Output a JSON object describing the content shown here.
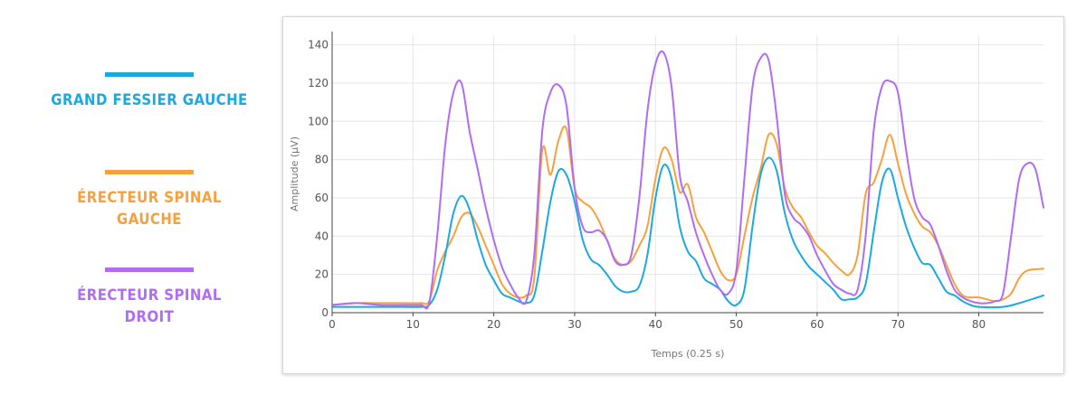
{
  "legend": {
    "items": [
      {
        "label": "GRAND FESSIER GAUCHE",
        "color": "#1aa9e1"
      },
      {
        "label": "ÉRECTEUR SPINAL GAUCHE",
        "color": "#f7a13e"
      },
      {
        "label": "ÉRECTEUR SPINAL DROIT",
        "color": "#b06cf2"
      }
    ]
  },
  "chart_data": {
    "type": "line",
    "xlabel": "Temps (0.25 s)",
    "ylabel": "Amplitude (μV)",
    "xlim": [
      0,
      88
    ],
    "ylim": [
      0,
      145
    ],
    "xticks": [
      0,
      10,
      20,
      30,
      40,
      50,
      60,
      70,
      80
    ],
    "yticks": [
      0,
      20,
      40,
      60,
      80,
      100,
      120,
      140
    ],
    "grid": true,
    "series": [
      {
        "name": "GRAND FESSIER GAUCHE",
        "color": "#1aa9e1",
        "points": [
          [
            0,
            3
          ],
          [
            3,
            3
          ],
          [
            6,
            3
          ],
          [
            9,
            3
          ],
          [
            11,
            3
          ],
          [
            12,
            4
          ],
          [
            13,
            12
          ],
          [
            14,
            30
          ],
          [
            15,
            52
          ],
          [
            16,
            61
          ],
          [
            17,
            54
          ],
          [
            18,
            38
          ],
          [
            19,
            25
          ],
          [
            20,
            17
          ],
          [
            21,
            10
          ],
          [
            22,
            8
          ],
          [
            23,
            6
          ],
          [
            24,
            5
          ],
          [
            25,
            9
          ],
          [
            26,
            32
          ],
          [
            27,
            58
          ],
          [
            28,
            74
          ],
          [
            29,
            72
          ],
          [
            30,
            58
          ],
          [
            31,
            38
          ],
          [
            32,
            28
          ],
          [
            33,
            25
          ],
          [
            34,
            20
          ],
          [
            35,
            14
          ],
          [
            36,
            11
          ],
          [
            37,
            11
          ],
          [
            38,
            14
          ],
          [
            39,
            30
          ],
          [
            40,
            60
          ],
          [
            41,
            77
          ],
          [
            42,
            70
          ],
          [
            43,
            45
          ],
          [
            44,
            32
          ],
          [
            45,
            27
          ],
          [
            46,
            18
          ],
          [
            47,
            15
          ],
          [
            48,
            12
          ],
          [
            49,
            6
          ],
          [
            50,
            4
          ],
          [
            51,
            12
          ],
          [
            52,
            45
          ],
          [
            53,
            72
          ],
          [
            54,
            81
          ],
          [
            55,
            74
          ],
          [
            56,
            52
          ],
          [
            57,
            38
          ],
          [
            58,
            30
          ],
          [
            59,
            24
          ],
          [
            60,
            20
          ],
          [
            61,
            16
          ],
          [
            62,
            12
          ],
          [
            63,
            7
          ],
          [
            64,
            7
          ],
          [
            65,
            8
          ],
          [
            66,
            15
          ],
          [
            67,
            42
          ],
          [
            68,
            68
          ],
          [
            69,
            75
          ],
          [
            70,
            60
          ],
          [
            71,
            45
          ],
          [
            72,
            34
          ],
          [
            73,
            26
          ],
          [
            74,
            25
          ],
          [
            75,
            18
          ],
          [
            76,
            11
          ],
          [
            77,
            9
          ],
          [
            78,
            6
          ],
          [
            79,
            4
          ],
          [
            80,
            3
          ],
          [
            83,
            3
          ],
          [
            85,
            5
          ],
          [
            88,
            9
          ]
        ]
      },
      {
        "name": "ÉRECTEUR SPINAL GAUCHE",
        "color": "#f7a13e",
        "points": [
          [
            0,
            4
          ],
          [
            3,
            5
          ],
          [
            6,
            5
          ],
          [
            9,
            5
          ],
          [
            11,
            5
          ],
          [
            12,
            6
          ],
          [
            13,
            22
          ],
          [
            14,
            32
          ],
          [
            15,
            40
          ],
          [
            16,
            50
          ],
          [
            17,
            52
          ],
          [
            18,
            45
          ],
          [
            19,
            35
          ],
          [
            20,
            25
          ],
          [
            21,
            15
          ],
          [
            22,
            10
          ],
          [
            23,
            8
          ],
          [
            24,
            9
          ],
          [
            25,
            18
          ],
          [
            26,
            85
          ],
          [
            27,
            72
          ],
          [
            28,
            90
          ],
          [
            29,
            96
          ],
          [
            30,
            65
          ],
          [
            31,
            58
          ],
          [
            32,
            55
          ],
          [
            33,
            48
          ],
          [
            34,
            38
          ],
          [
            35,
            28
          ],
          [
            36,
            25
          ],
          [
            37,
            27
          ],
          [
            38,
            35
          ],
          [
            39,
            45
          ],
          [
            40,
            70
          ],
          [
            41,
            86
          ],
          [
            42,
            80
          ],
          [
            43,
            63
          ],
          [
            44,
            67
          ],
          [
            45,
            50
          ],
          [
            46,
            42
          ],
          [
            47,
            32
          ],
          [
            48,
            22
          ],
          [
            49,
            17
          ],
          [
            50,
            20
          ],
          [
            51,
            40
          ],
          [
            52,
            60
          ],
          [
            53,
            75
          ],
          [
            54,
            93
          ],
          [
            55,
            88
          ],
          [
            56,
            65
          ],
          [
            57,
            55
          ],
          [
            58,
            50
          ],
          [
            59,
            42
          ],
          [
            60,
            35
          ],
          [
            61,
            31
          ],
          [
            62,
            26
          ],
          [
            63,
            22
          ],
          [
            64,
            20
          ],
          [
            65,
            30
          ],
          [
            66,
            62
          ],
          [
            67,
            68
          ],
          [
            68,
            80
          ],
          [
            69,
            93
          ],
          [
            70,
            78
          ],
          [
            71,
            62
          ],
          [
            72,
            52
          ],
          [
            73,
            45
          ],
          [
            74,
            42
          ],
          [
            75,
            35
          ],
          [
            76,
            25
          ],
          [
            77,
            15
          ],
          [
            78,
            9
          ],
          [
            79,
            8
          ],
          [
            80,
            8
          ],
          [
            81,
            7
          ],
          [
            82,
            6
          ],
          [
            83,
            7
          ],
          [
            84,
            10
          ],
          [
            85,
            18
          ],
          [
            86,
            22
          ],
          [
            88,
            23
          ]
        ]
      },
      {
        "name": "ÉRECTEUR SPINAL DROIT",
        "color": "#b06cf2",
        "points": [
          [
            0,
            4
          ],
          [
            3,
            5
          ],
          [
            6,
            4
          ],
          [
            9,
            4
          ],
          [
            11,
            4
          ],
          [
            12,
            5
          ],
          [
            13,
            40
          ],
          [
            14,
            88
          ],
          [
            15,
            115
          ],
          [
            16,
            120
          ],
          [
            17,
            95
          ],
          [
            18,
            75
          ],
          [
            19,
            55
          ],
          [
            20,
            38
          ],
          [
            21,
            24
          ],
          [
            22,
            15
          ],
          [
            23,
            8
          ],
          [
            24,
            6
          ],
          [
            25,
            30
          ],
          [
            26,
            95
          ],
          [
            27,
            115
          ],
          [
            28,
            119
          ],
          [
            29,
            108
          ],
          [
            30,
            65
          ],
          [
            31,
            45
          ],
          [
            32,
            42
          ],
          [
            33,
            43
          ],
          [
            34,
            38
          ],
          [
            35,
            27
          ],
          [
            36,
            25
          ],
          [
            37,
            30
          ],
          [
            38,
            60
          ],
          [
            39,
            105
          ],
          [
            40,
            130
          ],
          [
            41,
            136
          ],
          [
            42,
            118
          ],
          [
            43,
            72
          ],
          [
            44,
            58
          ],
          [
            45,
            42
          ],
          [
            46,
            30
          ],
          [
            47,
            20
          ],
          [
            48,
            12
          ],
          [
            49,
            10
          ],
          [
            50,
            22
          ],
          [
            51,
            70
          ],
          [
            52,
            118
          ],
          [
            53,
            133
          ],
          [
            54,
            132
          ],
          [
            55,
            102
          ],
          [
            56,
            62
          ],
          [
            57,
            50
          ],
          [
            58,
            46
          ],
          [
            59,
            40
          ],
          [
            60,
            30
          ],
          [
            61,
            22
          ],
          [
            62,
            15
          ],
          [
            63,
            12
          ],
          [
            64,
            10
          ],
          [
            65,
            12
          ],
          [
            66,
            40
          ],
          [
            67,
            95
          ],
          [
            68,
            118
          ],
          [
            69,
            121
          ],
          [
            70,
            115
          ],
          [
            71,
            85
          ],
          [
            72,
            60
          ],
          [
            73,
            50
          ],
          [
            74,
            46
          ],
          [
            75,
            35
          ],
          [
            76,
            22
          ],
          [
            77,
            12
          ],
          [
            78,
            8
          ],
          [
            79,
            6
          ],
          [
            80,
            5
          ],
          [
            81,
            5
          ],
          [
            82,
            6
          ],
          [
            83,
            10
          ],
          [
            84,
            40
          ],
          [
            85,
            70
          ],
          [
            86,
            78
          ],
          [
            87,
            75
          ],
          [
            88,
            55
          ]
        ]
      }
    ]
  }
}
